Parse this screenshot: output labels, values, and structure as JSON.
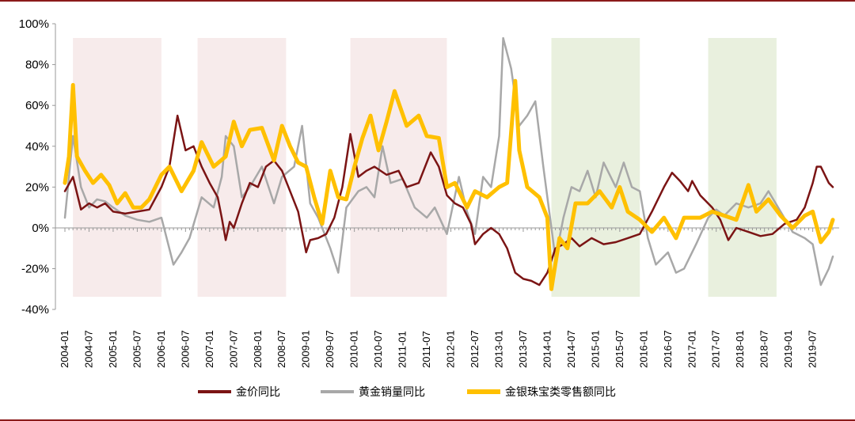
{
  "chart_data": {
    "type": "line",
    "title": "",
    "xlabel": "",
    "ylabel": "",
    "ylim": [
      -40,
      100
    ],
    "yticks": [
      -40,
      -20,
      0,
      20,
      40,
      60,
      80,
      100
    ],
    "ytick_labels": [
      "-40%",
      "-20%",
      "0%",
      "20%",
      "40%",
      "60%",
      "80%",
      "100%"
    ],
    "xtick_labels": [
      "2004-01",
      "2004-07",
      "2005-01",
      "2005-07",
      "2006-01",
      "2006-07",
      "2007-01",
      "2007-07",
      "2008-01",
      "2008-07",
      "2009-01",
      "2009-07",
      "2010-01",
      "2010-07",
      "2011-01",
      "2011-07",
      "2012-01",
      "2012-07",
      "2013-01",
      "2013-07",
      "2014-01",
      "2014-07",
      "2015-01",
      "2015-07",
      "2016-01",
      "2016-07",
      "2017-01",
      "2017-07",
      "2018-01",
      "2018-07",
      "2019-01",
      "2019-07"
    ],
    "grid": false,
    "legend_position": "bottom",
    "shaded_periods": [
      {
        "start": "2004-03",
        "end": "2006-01",
        "color": "#f7ebeb"
      },
      {
        "start": "2006-10",
        "end": "2008-08",
        "color": "#f7ebeb"
      },
      {
        "start": "2009-12",
        "end": "2011-12",
        "color": "#f7ebeb"
      },
      {
        "start": "2014-02",
        "end": "2015-12",
        "color": "#e9f0de"
      },
      {
        "start": "2017-05",
        "end": "2018-10",
        "color": "#e9f0de"
      }
    ],
    "series": [
      {
        "name": "金价同比",
        "color": "#7b1414",
        "points": [
          [
            "2004-01",
            18
          ],
          [
            "2004-03",
            25
          ],
          [
            "2004-05",
            9
          ],
          [
            "2004-07",
            12
          ],
          [
            "2004-09",
            10
          ],
          [
            "2004-11",
            12
          ],
          [
            "2005-01",
            8
          ],
          [
            "2005-04",
            7
          ],
          [
            "2005-07",
            8
          ],
          [
            "2005-10",
            9
          ],
          [
            "2006-01",
            20
          ],
          [
            "2006-03",
            30
          ],
          [
            "2006-05",
            55
          ],
          [
            "2006-07",
            38
          ],
          [
            "2006-09",
            40
          ],
          [
            "2006-11",
            30
          ],
          [
            "2007-01",
            22
          ],
          [
            "2007-03",
            15
          ],
          [
            "2007-04",
            5
          ],
          [
            "2007-05",
            -6
          ],
          [
            "2007-06",
            3
          ],
          [
            "2007-07",
            0
          ],
          [
            "2007-09",
            12
          ],
          [
            "2007-11",
            22
          ],
          [
            "2008-01",
            20
          ],
          [
            "2008-03",
            30
          ],
          [
            "2008-05",
            33
          ],
          [
            "2008-07",
            28
          ],
          [
            "2008-09",
            18
          ],
          [
            "2008-11",
            8
          ],
          [
            "2009-01",
            -12
          ],
          [
            "2009-02",
            -6
          ],
          [
            "2009-04",
            -5
          ],
          [
            "2009-06",
            -3
          ],
          [
            "2009-08",
            5
          ],
          [
            "2009-10",
            20
          ],
          [
            "2009-12",
            46
          ],
          [
            "2010-02",
            25
          ],
          [
            "2010-04",
            28
          ],
          [
            "2010-06",
            30
          ],
          [
            "2010-09",
            26
          ],
          [
            "2010-12",
            28
          ],
          [
            "2011-02",
            20
          ],
          [
            "2011-05",
            22
          ],
          [
            "2011-08",
            37
          ],
          [
            "2011-10",
            30
          ],
          [
            "2011-12",
            16
          ],
          [
            "2012-02",
            12
          ],
          [
            "2012-04",
            10
          ],
          [
            "2012-06",
            2
          ],
          [
            "2012-07",
            -8
          ],
          [
            "2012-09",
            -3
          ],
          [
            "2012-11",
            0
          ],
          [
            "2013-01",
            -3
          ],
          [
            "2013-03",
            -10
          ],
          [
            "2013-05",
            -22
          ],
          [
            "2013-07",
            -25
          ],
          [
            "2013-09",
            -26
          ],
          [
            "2013-11",
            -28
          ],
          [
            "2014-01",
            -22
          ],
          [
            "2014-03",
            -10
          ],
          [
            "2014-05",
            -8
          ],
          [
            "2014-07",
            -5
          ],
          [
            "2014-09",
            -9
          ],
          [
            "2014-12",
            -5
          ],
          [
            "2015-03",
            -8
          ],
          [
            "2015-06",
            -7
          ],
          [
            "2015-09",
            -5
          ],
          [
            "2015-12",
            -3
          ],
          [
            "2016-03",
            8
          ],
          [
            "2016-06",
            20
          ],
          [
            "2016-08",
            27
          ],
          [
            "2016-10",
            23
          ],
          [
            "2016-12",
            18
          ],
          [
            "2017-01",
            23
          ],
          [
            "2017-03",
            16
          ],
          [
            "2017-06",
            10
          ],
          [
            "2017-08",
            4
          ],
          [
            "2017-10",
            -6
          ],
          [
            "2017-12",
            0
          ],
          [
            "2018-03",
            -2
          ],
          [
            "2018-06",
            -4
          ],
          [
            "2018-09",
            -3
          ],
          [
            "2018-12",
            2
          ],
          [
            "2019-03",
            4
          ],
          [
            "2019-05",
            10
          ],
          [
            "2019-07",
            22
          ],
          [
            "2019-08",
            30
          ],
          [
            "2019-09",
            30
          ],
          [
            "2019-11",
            22
          ],
          [
            "2019-12",
            20
          ]
        ]
      },
      {
        "name": "黄金销量同比",
        "color": "#a8a8a8",
        "points": [
          [
            "2004-01",
            5
          ],
          [
            "2004-03",
            45
          ],
          [
            "2004-05",
            20
          ],
          [
            "2004-07",
            10
          ],
          [
            "2004-09",
            14
          ],
          [
            "2004-11",
            13
          ],
          [
            "2005-01",
            10
          ],
          [
            "2005-04",
            6
          ],
          [
            "2005-07",
            4
          ],
          [
            "2005-10",
            3
          ],
          [
            "2006-01",
            5
          ],
          [
            "2006-04",
            -18
          ],
          [
            "2006-06",
            -12
          ],
          [
            "2006-08",
            -5
          ],
          [
            "2006-11",
            15
          ],
          [
            "2007-02",
            10
          ],
          [
            "2007-04",
            25
          ],
          [
            "2007-05",
            45
          ],
          [
            "2007-07",
            40
          ],
          [
            "2007-09",
            15
          ],
          [
            "2007-11",
            20
          ],
          [
            "2008-02",
            30
          ],
          [
            "2008-05",
            12
          ],
          [
            "2008-07",
            25
          ],
          [
            "2008-10",
            30
          ],
          [
            "2008-12",
            50
          ],
          [
            "2009-02",
            12
          ],
          [
            "2009-04",
            5
          ],
          [
            "2009-07",
            -10
          ],
          [
            "2009-09",
            -22
          ],
          [
            "2009-11",
            10
          ],
          [
            "2010-02",
            18
          ],
          [
            "2010-04",
            20
          ],
          [
            "2010-06",
            15
          ],
          [
            "2010-08",
            40
          ],
          [
            "2010-10",
            22
          ],
          [
            "2011-01",
            24
          ],
          [
            "2011-04",
            10
          ],
          [
            "2011-07",
            5
          ],
          [
            "2011-09",
            10
          ],
          [
            "2011-12",
            -3
          ],
          [
            "2012-03",
            25
          ],
          [
            "2012-05",
            8
          ],
          [
            "2012-07",
            -3
          ],
          [
            "2012-09",
            25
          ],
          [
            "2012-11",
            20
          ],
          [
            "2013-01",
            45
          ],
          [
            "2013-02",
            93
          ],
          [
            "2013-04",
            78
          ],
          [
            "2013-06",
            50
          ],
          [
            "2013-08",
            55
          ],
          [
            "2013-10",
            62
          ],
          [
            "2013-12",
            30
          ],
          [
            "2014-03",
            -15
          ],
          [
            "2014-05",
            5
          ],
          [
            "2014-07",
            20
          ],
          [
            "2014-09",
            18
          ],
          [
            "2014-11",
            28
          ],
          [
            "2015-01",
            15
          ],
          [
            "2015-03",
            32
          ],
          [
            "2015-06",
            20
          ],
          [
            "2015-08",
            32
          ],
          [
            "2015-10",
            20
          ],
          [
            "2015-12",
            18
          ],
          [
            "2016-02",
            -5
          ],
          [
            "2016-04",
            -18
          ],
          [
            "2016-07",
            -12
          ],
          [
            "2016-09",
            -22
          ],
          [
            "2016-11",
            -20
          ],
          [
            "2017-02",
            -8
          ],
          [
            "2017-05",
            5
          ],
          [
            "2017-07",
            9
          ],
          [
            "2017-09",
            6
          ],
          [
            "2017-12",
            12
          ],
          [
            "2018-03",
            10
          ],
          [
            "2018-06",
            12
          ],
          [
            "2018-08",
            18
          ],
          [
            "2018-11",
            8
          ],
          [
            "2019-02",
            -2
          ],
          [
            "2019-05",
            -5
          ],
          [
            "2019-07",
            -8
          ],
          [
            "2019-09",
            -28
          ],
          [
            "2019-11",
            -20
          ],
          [
            "2019-12",
            -14
          ]
        ]
      },
      {
        "name": "金银珠宝类零售额同比",
        "color": "#ffc000",
        "points": [
          [
            "2004-01",
            22
          ],
          [
            "2004-02",
            35
          ],
          [
            "2004-03",
            70
          ],
          [
            "2004-04",
            35
          ],
          [
            "2004-06",
            28
          ],
          [
            "2004-08",
            22
          ],
          [
            "2004-10",
            26
          ],
          [
            "2004-12",
            21
          ],
          [
            "2005-02",
            12
          ],
          [
            "2005-04",
            17
          ],
          [
            "2005-06",
            10
          ],
          [
            "2005-08",
            10
          ],
          [
            "2005-10",
            14
          ],
          [
            "2006-01",
            26
          ],
          [
            "2006-03",
            30
          ],
          [
            "2006-06",
            18
          ],
          [
            "2006-09",
            28
          ],
          [
            "2006-11",
            42
          ],
          [
            "2007-02",
            30
          ],
          [
            "2007-05",
            35
          ],
          [
            "2007-07",
            52
          ],
          [
            "2007-09",
            40
          ],
          [
            "2007-11",
            48
          ],
          [
            "2008-02",
            49
          ],
          [
            "2008-05",
            33
          ],
          [
            "2008-07",
            50
          ],
          [
            "2008-09",
            40
          ],
          [
            "2008-11",
            32
          ],
          [
            "2009-01",
            30
          ],
          [
            "2009-03",
            15
          ],
          [
            "2009-05",
            2
          ],
          [
            "2009-07",
            28
          ],
          [
            "2009-09",
            15
          ],
          [
            "2009-11",
            14
          ],
          [
            "2010-01",
            30
          ],
          [
            "2010-03",
            44
          ],
          [
            "2010-05",
            55
          ],
          [
            "2010-07",
            38
          ],
          [
            "2010-09",
            52
          ],
          [
            "2010-11",
            67
          ],
          [
            "2011-02",
            50
          ],
          [
            "2011-05",
            55
          ],
          [
            "2011-07",
            45
          ],
          [
            "2011-10",
            44
          ],
          [
            "2011-12",
            20
          ],
          [
            "2012-02",
            22
          ],
          [
            "2012-05",
            10
          ],
          [
            "2012-07",
            18
          ],
          [
            "2012-10",
            15
          ],
          [
            "2013-01",
            20
          ],
          [
            "2013-03",
            22
          ],
          [
            "2013-05",
            72
          ],
          [
            "2013-06",
            38
          ],
          [
            "2013-08",
            20
          ],
          [
            "2013-11",
            15
          ],
          [
            "2014-01",
            5
          ],
          [
            "2014-02",
            -30
          ],
          [
            "2014-04",
            -5
          ],
          [
            "2014-06",
            -10
          ],
          [
            "2014-08",
            12
          ],
          [
            "2014-11",
            12
          ],
          [
            "2015-02",
            18
          ],
          [
            "2015-05",
            10
          ],
          [
            "2015-07",
            20
          ],
          [
            "2015-09",
            8
          ],
          [
            "2015-12",
            4
          ],
          [
            "2016-03",
            -2
          ],
          [
            "2016-06",
            5
          ],
          [
            "2016-09",
            -5
          ],
          [
            "2016-11",
            5
          ],
          [
            "2017-03",
            5
          ],
          [
            "2017-06",
            8
          ],
          [
            "2017-09",
            6
          ],
          [
            "2017-12",
            4
          ],
          [
            "2018-03",
            21
          ],
          [
            "2018-05",
            8
          ],
          [
            "2018-08",
            14
          ],
          [
            "2018-11",
            6
          ],
          [
            "2019-02",
            0
          ],
          [
            "2019-05",
            6
          ],
          [
            "2019-07",
            8
          ],
          [
            "2019-09",
            -7
          ],
          [
            "2019-11",
            -2
          ],
          [
            "2019-12",
            4
          ]
        ]
      }
    ]
  },
  "legend": {
    "items": [
      {
        "label": "金价同比",
        "color": "#7b1414"
      },
      {
        "label": "黄金销量同比",
        "color": "#a8a8a8"
      },
      {
        "label": "金银珠宝类零售额同比",
        "color": "#ffc000"
      }
    ]
  },
  "frame": {
    "border_color": "#8b1a1a"
  }
}
